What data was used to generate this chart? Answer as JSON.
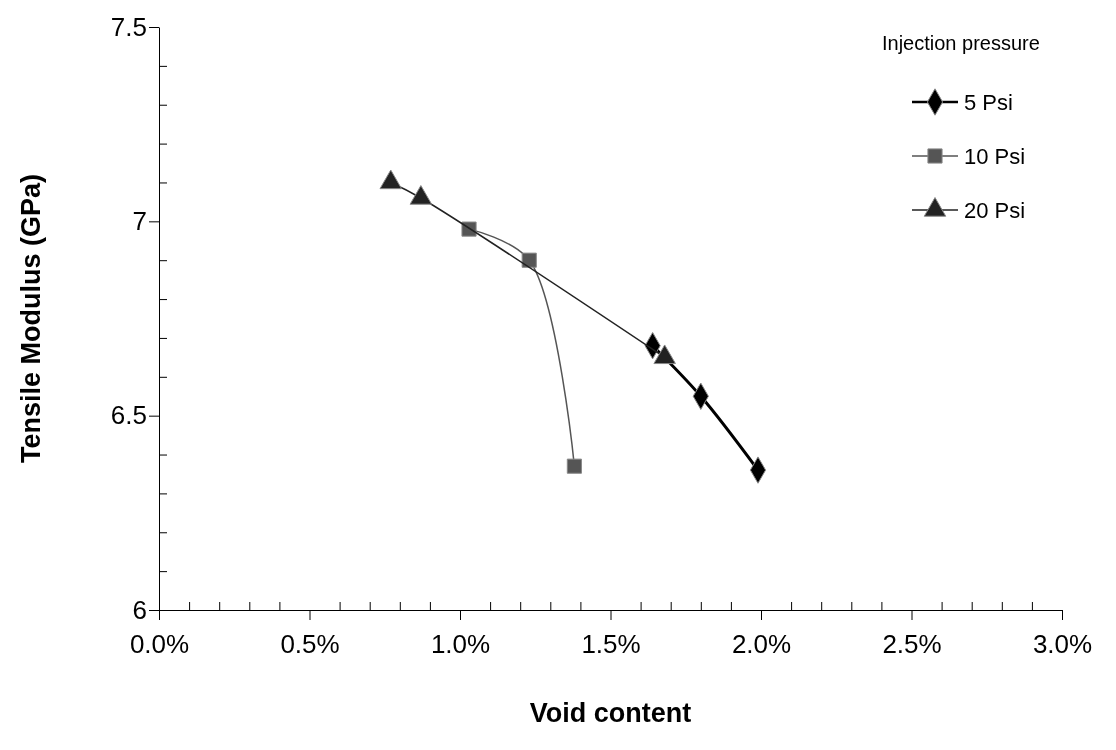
{
  "chart_data": {
    "type": "line",
    "xlabel": "Void content",
    "ylabel": "Tensile Modulus (GPa)",
    "legend_title": "Injection pressure",
    "legend": "top right",
    "grid": false,
    "xlim": [
      0,
      3
    ],
    "ylim": [
      6,
      7.5
    ],
    "xticks": [
      {
        "value": 0,
        "label": "0.0%"
      },
      {
        "value": 0.1,
        "label": null
      },
      {
        "value": 0.2,
        "label": null
      },
      {
        "value": 0.3,
        "label": null
      },
      {
        "value": 0.4,
        "label": null
      },
      {
        "value": 0.5,
        "label": "0.5%"
      },
      {
        "value": 0.6,
        "label": null
      },
      {
        "value": 0.7,
        "label": null
      },
      {
        "value": 0.8,
        "label": null
      },
      {
        "value": 0.9,
        "label": null
      },
      {
        "value": 1,
        "label": "1.0%"
      },
      {
        "value": 1.1,
        "label": null
      },
      {
        "value": 1.2,
        "label": null
      },
      {
        "value": 1.3,
        "label": null
      },
      {
        "value": 1.4,
        "label": null
      },
      {
        "value": 1.5,
        "label": "1.5%"
      },
      {
        "value": 1.6,
        "label": null
      },
      {
        "value": 1.7,
        "label": null
      },
      {
        "value": 1.8,
        "label": null
      },
      {
        "value": 1.9,
        "label": null
      },
      {
        "value": 2,
        "label": "2.0%"
      },
      {
        "value": 2.1,
        "label": null
      },
      {
        "value": 2.2,
        "label": null
      },
      {
        "value": 2.3,
        "label": null
      },
      {
        "value": 2.4,
        "label": null
      },
      {
        "value": 2.5,
        "label": "2.5%"
      },
      {
        "value": 2.6,
        "label": null
      },
      {
        "value": 2.7,
        "label": null
      },
      {
        "value": 2.8,
        "label": null
      },
      {
        "value": 2.9,
        "label": null
      },
      {
        "value": 3,
        "label": "3.0%"
      }
    ],
    "yticks": [
      6,
      {
        "value": 6.1,
        "label": null
      },
      {
        "value": 6.2,
        "label": null
      },
      {
        "value": 6.3,
        "label": null
      },
      {
        "value": 6.4,
        "label": null
      },
      6.5,
      {
        "value": 6.6,
        "label": null
      },
      {
        "value": 6.7,
        "label": null
      },
      {
        "value": 6.8,
        "label": null
      },
      {
        "value": 6.9,
        "label": null
      },
      7,
      {
        "value": 7.1,
        "label": null
      },
      {
        "value": 7.2,
        "label": null
      },
      {
        "value": 7.3,
        "label": null
      },
      {
        "value": 7.4,
        "label": null
      },
      7.5
    ],
    "series": [
      {
        "name": "5 Psi",
        "color": "#000000",
        "marker": "diamond",
        "x": [
          1.64,
          1.8,
          1.99
        ],
        "values": [
          6.68,
          6.55,
          6.36
        ]
      },
      {
        "name": "10 Psi",
        "color": "#555555",
        "marker": "square",
        "x": [
          1.03,
          1.23,
          1.38
        ],
        "values": [
          6.98,
          6.9,
          6.37
        ]
      },
      {
        "name": "20 Psi",
        "color": "#222222",
        "marker": "triangle",
        "x": [
          0.77,
          0.87,
          1.68
        ],
        "values": [
          7.1,
          7.06,
          6.65
        ]
      }
    ]
  }
}
